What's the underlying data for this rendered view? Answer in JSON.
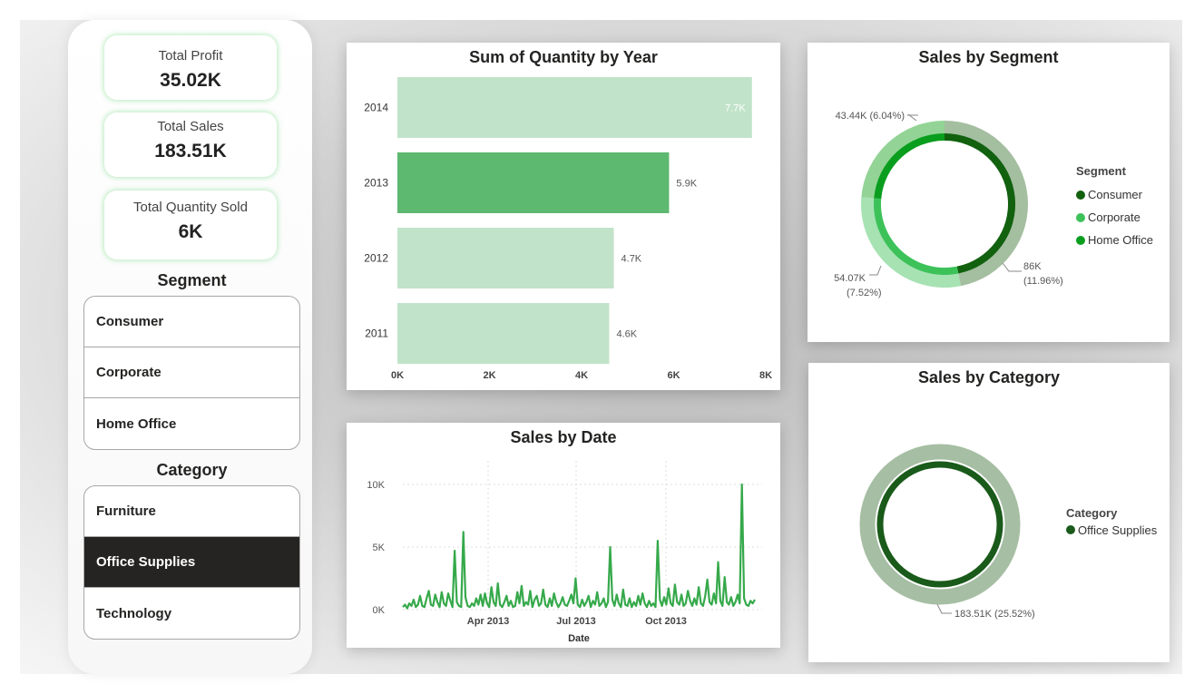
{
  "kpis": {
    "profit": {
      "label": "Total Profit",
      "value": "35.02K"
    },
    "sales": {
      "label": "Total Sales",
      "value": "183.51K"
    },
    "quantity": {
      "label": "Total Quantity Sold",
      "value": "6K"
    }
  },
  "segment_slicer": {
    "title": "Segment",
    "items": [
      "Consumer",
      "Corporate",
      "Home Office"
    ]
  },
  "category_slicer": {
    "title": "Category",
    "items": [
      "Furniture",
      "Office Supplies",
      "Technology"
    ],
    "selected": "Office Supplies"
  },
  "quantity_chart": {
    "title": "Sum of Quantity by Year",
    "chart_data": {
      "type": "bar",
      "orientation": "horizontal",
      "categories": [
        "2014",
        "2013",
        "2012",
        "2011"
      ],
      "values": [
        7.7,
        5.9,
        4.7,
        4.6
      ],
      "value_labels": [
        "7.7K",
        "5.9K",
        "4.7K",
        "4.6K"
      ],
      "highlighted": "2013",
      "xlim": [
        0,
        8
      ],
      "x_ticks": [
        "0K",
        "2K",
        "4K",
        "6K",
        "8K"
      ],
      "colors": {
        "bar": "#c1e3c9",
        "highlight": "#5db870"
      }
    }
  },
  "date_chart": {
    "title": "Sales by Date",
    "chart_data": {
      "type": "line",
      "xlabel": "Date",
      "x_ticks": [
        "Apr 2013",
        "Jul 2013",
        "Oct 2013"
      ],
      "y_ticks": [
        "0K",
        "5K",
        "10K"
      ],
      "ylim": [
        0,
        10
      ],
      "grid": true,
      "color": "#36a94b",
      "values": [
        0.2,
        0.4,
        0.1,
        0.5,
        0.3,
        0.8,
        0.2,
        0.4,
        1.1,
        0.3,
        0.2,
        0.9,
        1.5,
        0.4,
        0.3,
        1.2,
        0.6,
        0.2,
        1.4,
        0.5,
        0.3,
        1.3,
        0.7,
        0.2,
        4.7,
        0.6,
        0.3,
        0.2,
        6.2,
        1.0,
        0.3,
        0.2,
        0.5,
        0.3,
        0.9,
        0.4,
        1.2,
        0.3,
        1.3,
        0.5,
        0.2,
        1.8,
        0.6,
        0.3,
        2.1,
        0.4,
        0.2,
        0.6,
        1.1,
        0.3,
        0.7,
        0.2,
        0.3,
        1.4,
        0.5,
        1.9,
        0.3,
        0.6,
        0.4,
        1.5,
        0.2,
        0.8,
        1.1,
        0.3,
        0.5,
        1.6,
        0.4,
        0.2,
        0.9,
        0.3,
        1.3,
        0.6,
        0.2,
        0.5,
        1.0,
        0.4,
        0.3,
        0.7,
        1.2,
        0.5,
        2.5,
        0.4,
        0.2,
        0.8,
        0.3,
        0.6,
        1.1,
        0.2,
        0.7,
        0.4,
        1.4,
        0.3,
        0.5,
        0.9,
        0.2,
        0.6,
        5.0,
        0.8,
        0.3,
        1.2,
        0.5,
        0.2,
        1.6,
        0.4,
        0.3,
        0.9,
        0.2,
        0.6,
        0.3,
        1.1,
        0.4,
        1.3,
        0.5,
        0.2,
        0.7,
        0.3,
        0.5,
        0.2,
        5.5,
        0.8,
        0.3,
        1.0,
        0.4,
        1.7,
        0.5,
        0.3,
        2.0,
        0.6,
        0.4,
        1.2,
        0.3,
        0.5,
        1.5,
        0.7,
        0.3,
        0.9,
        0.4,
        1.8,
        0.5,
        0.3,
        1.1,
        2.4,
        0.6,
        0.4,
        1.3,
        0.5,
        3.8,
        0.7,
        0.3,
        2.6,
        0.6,
        0.4,
        1.0,
        0.3,
        0.6,
        1.2,
        0.5,
        10.0,
        0.9,
        0.4,
        0.3,
        0.7,
        0.5,
        0.8
      ]
    }
  },
  "segment_chart": {
    "title": "Sales by Segment",
    "legend_title": "Segment",
    "chart_data": {
      "type": "pie",
      "style": "donut",
      "labels": [
        "Consumer",
        "Corporate",
        "Home Office"
      ],
      "values": [
        86,
        54.07,
        43.44
      ],
      "data_labels": [
        "86K (11.96%)",
        "54.07K (7.52%)",
        "43.44K (6.04%)"
      ],
      "colors": [
        "#11610f",
        "#3dc25a",
        "#0a9e1e"
      ],
      "ring_colors": [
        "#a4bea0",
        "#a7e2b3",
        "#93d496"
      ]
    },
    "label_parts": {
      "consumer": [
        "86K",
        "(11.96%)"
      ],
      "corporate": [
        "54.07K",
        "(7.52%)"
      ],
      "home_office": "43.44K (6.04%)"
    }
  },
  "category_chart": {
    "title": "Sales by Category",
    "legend_title": "Category",
    "chart_data": {
      "type": "pie",
      "style": "donut",
      "labels": [
        "Office Supplies"
      ],
      "values": [
        183.51
      ],
      "data_labels": [
        "183.51K (25.52%)"
      ],
      "colors": [
        "#1a5a1a"
      ],
      "ring_colors": [
        "#a6bea3"
      ]
    }
  }
}
